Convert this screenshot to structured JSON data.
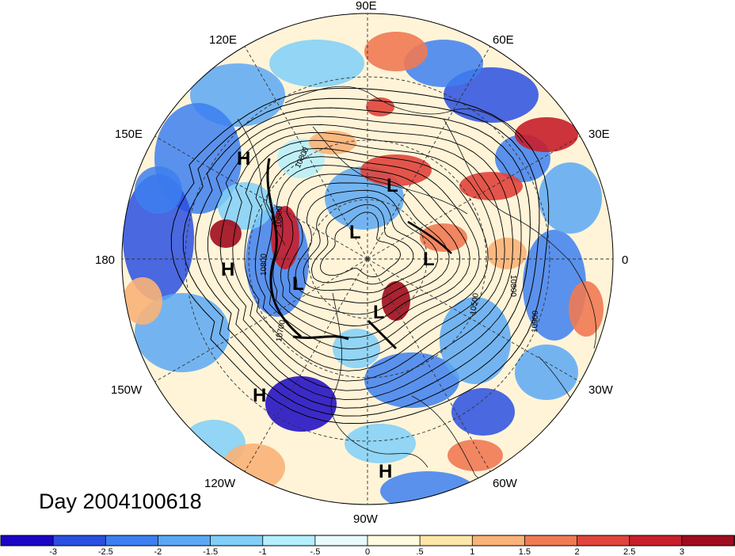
{
  "map": {
    "longitude_labels": [
      "90E",
      "60E",
      "30E",
      "0",
      "30W",
      "60W",
      "90W",
      "120W",
      "150W",
      "180",
      "150E",
      "120E"
    ],
    "pressure_systems": [
      "H",
      "H",
      "H",
      "H",
      "L",
      "L",
      "L",
      "L",
      "L"
    ],
    "contour_labels": [
      "10800",
      "10800",
      "10800",
      "10700",
      "10800",
      "10500",
      "10900"
    ],
    "date_label": "Day 2004100618"
  },
  "colorbar": {
    "tick_labels": [
      "-3",
      "-2.5",
      "-2",
      "-1.5",
      "-1",
      "-.5",
      "0",
      ".5",
      "1",
      "1.5",
      "2",
      "2.5",
      "3"
    ],
    "colors": [
      "#1a06c4",
      "#2a4fe0",
      "#3d7ff0",
      "#5aa8f5",
      "#7fcff9",
      "#b5eefc",
      "#e8fafd",
      "#fffbe0",
      "#fde7a8",
      "#f9b278",
      "#f07a54",
      "#e0443c",
      "#c81e2a",
      "#a00c1e"
    ]
  }
}
